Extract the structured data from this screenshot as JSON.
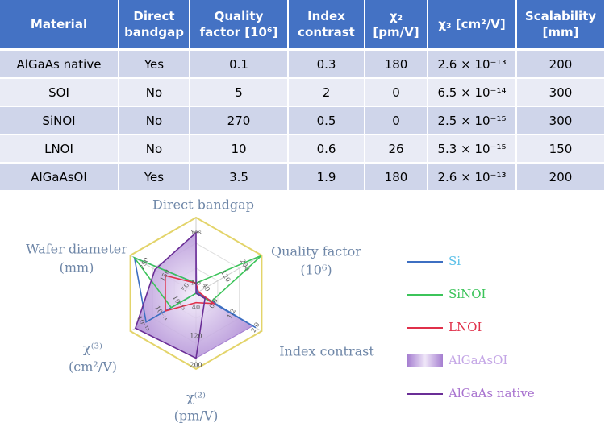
{
  "table": {
    "columns": [
      "Material",
      "Direct bandgap",
      "Quality factor [10⁶]",
      "Index contrast",
      "χ₂ [pm/V]",
      "χ₃ [cm²/V]",
      "Scalability [mm]"
    ],
    "rows": [
      [
        "AlGaAs native",
        "Yes",
        0.1,
        0.3,
        180,
        "2.6 × 10⁻¹³",
        200
      ],
      [
        "SOI",
        "No",
        5,
        2,
        0,
        "6.5 × 10⁻¹⁴",
        300
      ],
      [
        "SiNOI",
        "No",
        270,
        0.5,
        0,
        "2.5 × 10⁻¹⁵",
        300
      ],
      [
        "LNOI",
        "No",
        10,
        0.6,
        26,
        "5.3 × 10⁻¹⁵",
        150
      ],
      [
        "AlGaAsOI",
        "Yes",
        3.5,
        1.9,
        180,
        "2.6 × 10⁻¹³",
        200
      ]
    ]
  },
  "chart_data": {
    "type": "radar",
    "axes": [
      {
        "label": [
          "Direct bandgap"
        ],
        "lim": [
          -0.2,
          1.3
        ],
        "ticks": [
          {
            "value": 0,
            "label": "No"
          },
          {
            "value": 1,
            "label": "Yes"
          }
        ]
      },
      {
        "label": [
          "Quality factor",
          "(10⁶)"
        ],
        "lim": [
          0,
          270
        ],
        "ticks": [
          40,
          120,
          200
        ]
      },
      {
        "label": [
          "Index contrast"
        ],
        "lim": [
          0,
          2.2
        ],
        "ticks": [
          0.6,
          1.2,
          {
            "value": 2,
            "label": "2.0"
          }
        ]
      },
      {
        "label": [
          "χ⁽²⁾",
          "(pm/V)"
        ],
        "lim": [
          0,
          210
        ],
        "ticks": [
          40,
          120,
          200
        ]
      },
      {
        "label": [
          "χ⁽³⁾",
          "(cm²/V)"
        ],
        "log": true,
        "lim": [
          1e-16,
          5e-13
        ],
        "ticks": [
          {
            "value": 1e-15,
            "label": "10⁻¹⁵"
          },
          {
            "value": 1e-14,
            "label": "10⁻¹⁴"
          },
          {
            "value": 1e-13,
            "label": "10⁻¹³"
          }
        ]
      },
      {
        "label": [
          "Wafer diameter",
          "(mm)"
        ],
        "lim": [
          0,
          320
        ],
        "ticks": [
          50,
          150,
          250
        ]
      }
    ],
    "series": [
      {
        "name": "AlGaAsOI",
        "style": "area",
        "color": "#a57ed0",
        "label_color": "#c4a6e6",
        "values": [
          1,
          3.5,
          1.9,
          180,
          2.6e-13,
          200
        ]
      },
      {
        "name": "Si",
        "style": "line",
        "color": "#3d6fc2",
        "label_color": "#5bc0e8",
        "values": [
          0,
          5,
          2,
          0,
          6.5e-14,
          300
        ]
      },
      {
        "name": "SiNOI",
        "style": "line",
        "color": "#3cc45a",
        "label_color": "#3cc45a",
        "values": [
          0,
          270,
          0.5,
          0,
          2.5e-15,
          300
        ]
      },
      {
        "name": "LNOI",
        "style": "line",
        "color": "#e0304a",
        "label_color": "#e0304a",
        "values": [
          0,
          10,
          0.6,
          26,
          5.3e-15,
          150
        ]
      },
      {
        "name": "AlGaAs native",
        "style": "line",
        "color": "#6a2e96",
        "label_color": "#a872cf",
        "values": [
          1,
          0.1,
          0.3,
          180,
          2.6e-13,
          200
        ]
      }
    ],
    "legend_order": [
      1,
      2,
      3,
      0,
      4
    ]
  }
}
